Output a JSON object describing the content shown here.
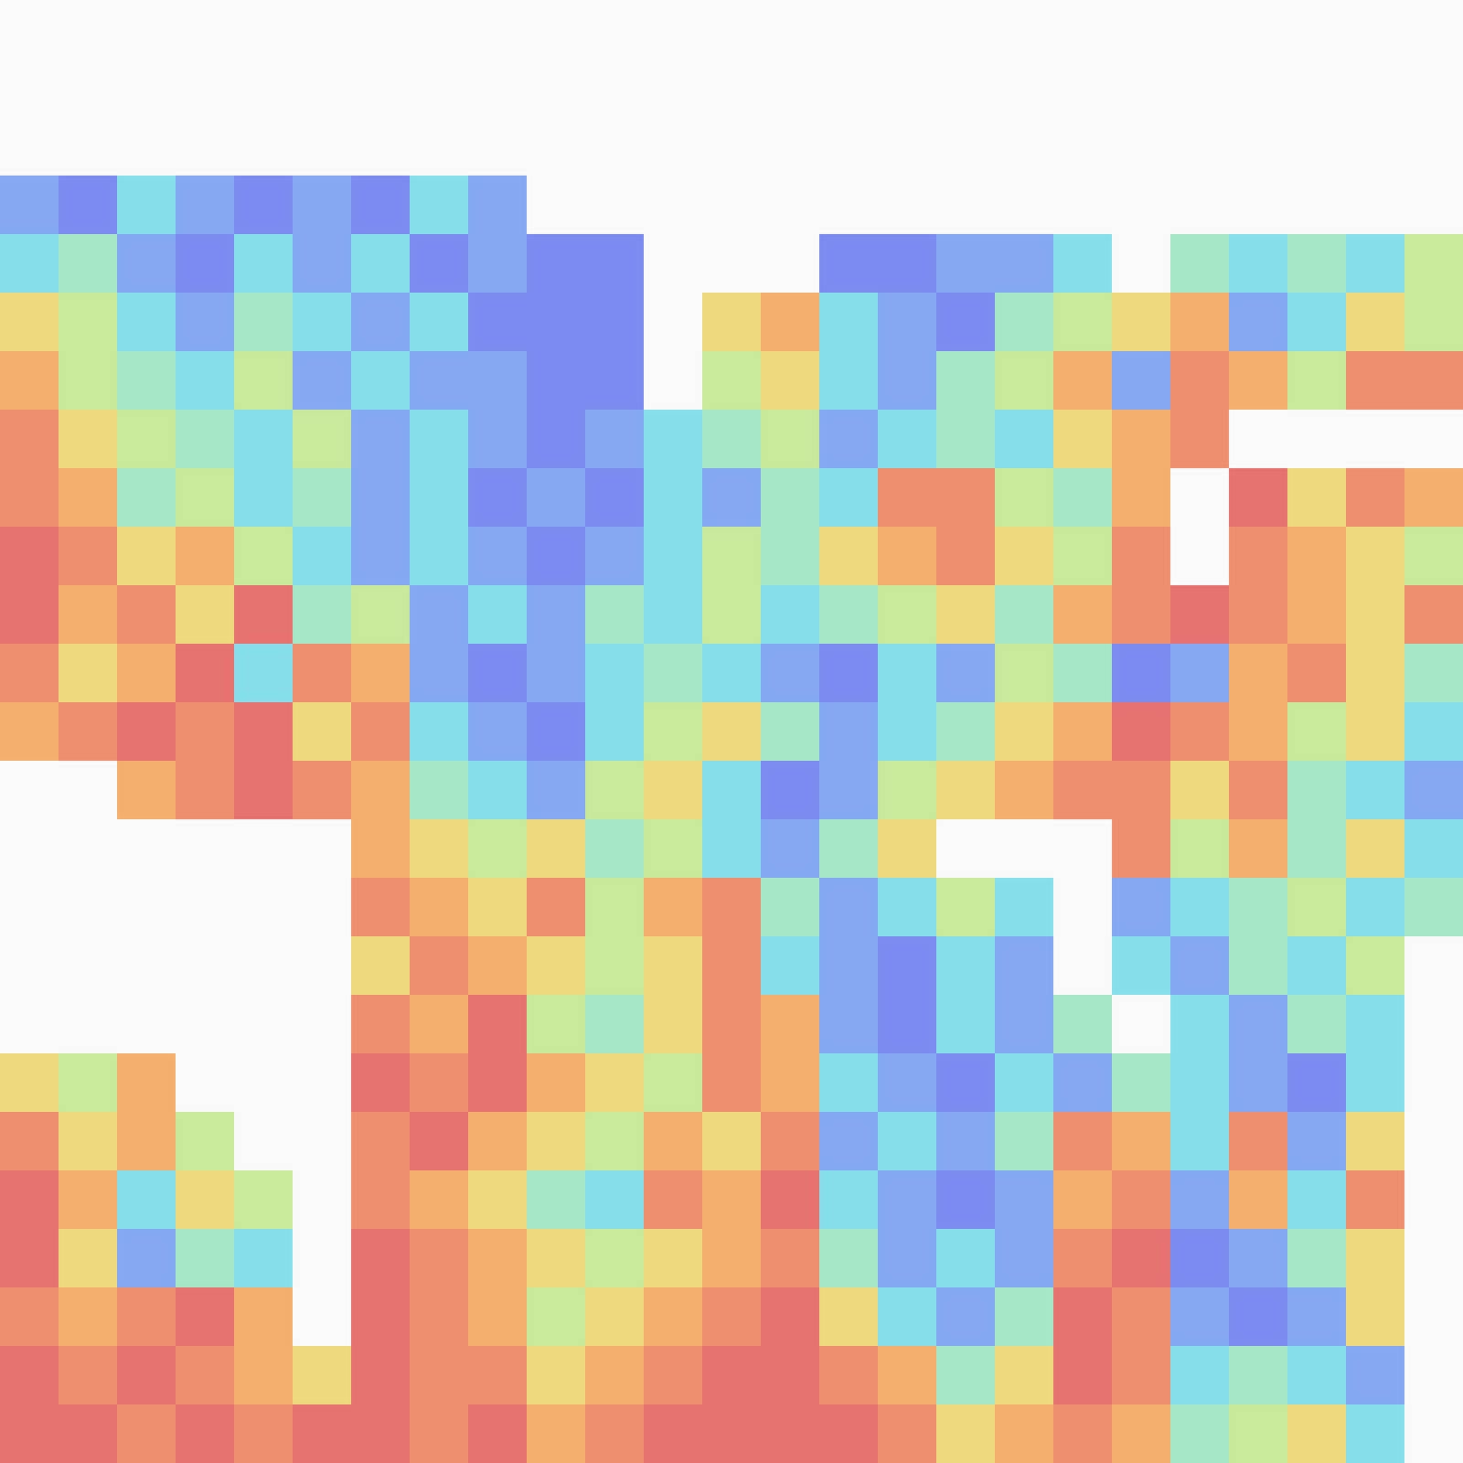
{
  "chart_data": {
    "type": "heatmap",
    "tick_labels": false,
    "zlim": [
      0,
      9
    ],
    "cells": [
      [
        null,
        null,
        null,
        null,
        null,
        null,
        null,
        null,
        null,
        null,
        null,
        null,
        null,
        null,
        null,
        null,
        null,
        null,
        null,
        null,
        null,
        null,
        null,
        null,
        null
      ],
      [
        null,
        null,
        null,
        null,
        null,
        null,
        null,
        null,
        null,
        null,
        null,
        null,
        null,
        null,
        null,
        null,
        null,
        null,
        null,
        null,
        null,
        null,
        null,
        null,
        null
      ],
      [
        null,
        null,
        null,
        null,
        null,
        null,
        null,
        null,
        null,
        null,
        null,
        null,
        null,
        null,
        null,
        null,
        null,
        null,
        null,
        null,
        null,
        null,
        null,
        null,
        null
      ],
      [
        2,
        1,
        3,
        2,
        1,
        2,
        1,
        3,
        2,
        null,
        null,
        null,
        null,
        null,
        null,
        null,
        null,
        null,
        null,
        null,
        null,
        null,
        null,
        null,
        null
      ],
      [
        3,
        4,
        2,
        1,
        3,
        2,
        3,
        1,
        2,
        1,
        1,
        null,
        null,
        null,
        1,
        1,
        2,
        2,
        3,
        null,
        4,
        3,
        4,
        3,
        5
      ],
      [
        6,
        5,
        3,
        2,
        4,
        3,
        2,
        3,
        1,
        1,
        1,
        null,
        6,
        7,
        3,
        2,
        1,
        4,
        5,
        6,
        7,
        2,
        3,
        6,
        5
      ],
      [
        7,
        5,
        4,
        3,
        5,
        2,
        3,
        2,
        2,
        1,
        1,
        null,
        5,
        6,
        3,
        2,
        4,
        5,
        7,
        2,
        8,
        7,
        5,
        8,
        8
      ],
      [
        8,
        6,
        5,
        4,
        3,
        5,
        2,
        3,
        2,
        1,
        2,
        3,
        4,
        5,
        2,
        3,
        4,
        3,
        6,
        7,
        8,
        null,
        null,
        null,
        null
      ],
      [
        8,
        7,
        4,
        5,
        3,
        4,
        2,
        3,
        1,
        2,
        1,
        3,
        2,
        4,
        3,
        8,
        8,
        5,
        4,
        7,
        null,
        9,
        6,
        8,
        7
      ],
      [
        9,
        8,
        6,
        7,
        5,
        3,
        2,
        3,
        2,
        1,
        2,
        3,
        5,
        4,
        6,
        7,
        8,
        6,
        5,
        8,
        null,
        8,
        7,
        6,
        5
      ],
      [
        9,
        7,
        8,
        6,
        9,
        4,
        5,
        2,
        3,
        2,
        4,
        3,
        5,
        3,
        4,
        5,
        6,
        4,
        7,
        8,
        9,
        8,
        7,
        6,
        8
      ],
      [
        8,
        6,
        7,
        9,
        3,
        8,
        7,
        2,
        1,
        2,
        3,
        4,
        3,
        2,
        1,
        3,
        2,
        5,
        4,
        1,
        2,
        7,
        8,
        6,
        4
      ],
      [
        7,
        8,
        9,
        8,
        9,
        6,
        8,
        3,
        2,
        1,
        3,
        5,
        6,
        4,
        2,
        3,
        4,
        6,
        7,
        9,
        8,
        7,
        5,
        6,
        3
      ],
      [
        null,
        null,
        7,
        8,
        9,
        8,
        7,
        4,
        3,
        2,
        5,
        6,
        3,
        1,
        2,
        5,
        6,
        7,
        8,
        8,
        6,
        8,
        4,
        3,
        2
      ],
      [
        null,
        null,
        null,
        null,
        null,
        null,
        7,
        6,
        5,
        6,
        4,
        5,
        3,
        2,
        4,
        6,
        null,
        null,
        null,
        8,
        5,
        7,
        4,
        6,
        3
      ],
      [
        null,
        null,
        null,
        null,
        null,
        null,
        8,
        7,
        6,
        8,
        5,
        7,
        8,
        4,
        2,
        3,
        5,
        3,
        null,
        2,
        3,
        4,
        5,
        3,
        4
      ],
      [
        null,
        null,
        null,
        null,
        null,
        null,
        6,
        8,
        7,
        6,
        5,
        6,
        8,
        3,
        2,
        1,
        3,
        2,
        null,
        3,
        2,
        4,
        3,
        5,
        null
      ],
      [
        null,
        null,
        null,
        null,
        null,
        null,
        8,
        7,
        9,
        5,
        4,
        6,
        8,
        7,
        2,
        1,
        3,
        2,
        4,
        null,
        3,
        2,
        4,
        3,
        null
      ],
      [
        6,
        5,
        7,
        null,
        null,
        null,
        9,
        8,
        9,
        7,
        6,
        5,
        8,
        7,
        3,
        2,
        1,
        3,
        2,
        4,
        3,
        2,
        1,
        3,
        null
      ],
      [
        8,
        6,
        7,
        5,
        null,
        null,
        8,
        9,
        7,
        6,
        5,
        7,
        6,
        8,
        2,
        3,
        2,
        4,
        8,
        7,
        3,
        8,
        2,
        6,
        null
      ],
      [
        9,
        7,
        3,
        6,
        5,
        null,
        8,
        7,
        6,
        4,
        3,
        8,
        7,
        9,
        3,
        2,
        1,
        2,
        7,
        8,
        2,
        7,
        3,
        8,
        null
      ],
      [
        9,
        6,
        2,
        4,
        3,
        null,
        9,
        8,
        7,
        6,
        5,
        6,
        7,
        8,
        4,
        2,
        3,
        2,
        8,
        9,
        1,
        2,
        4,
        6,
        null
      ],
      [
        8,
        7,
        8,
        9,
        7,
        null,
        9,
        8,
        7,
        5,
        6,
        7,
        8,
        9,
        6,
        3,
        2,
        4,
        9,
        8,
        2,
        1,
        2,
        6,
        null
      ],
      [
        9,
        8,
        9,
        8,
        7,
        6,
        9,
        8,
        8,
        6,
        7,
        8,
        9,
        9,
        8,
        7,
        4,
        6,
        9,
        8,
        3,
        4,
        3,
        2,
        null
      ],
      [
        9,
        9,
        8,
        9,
        8,
        9,
        9,
        8,
        9,
        7,
        8,
        9,
        9,
        9,
        9,
        8,
        6,
        7,
        8,
        7,
        4,
        5,
        6,
        3,
        null
      ]
    ]
  }
}
